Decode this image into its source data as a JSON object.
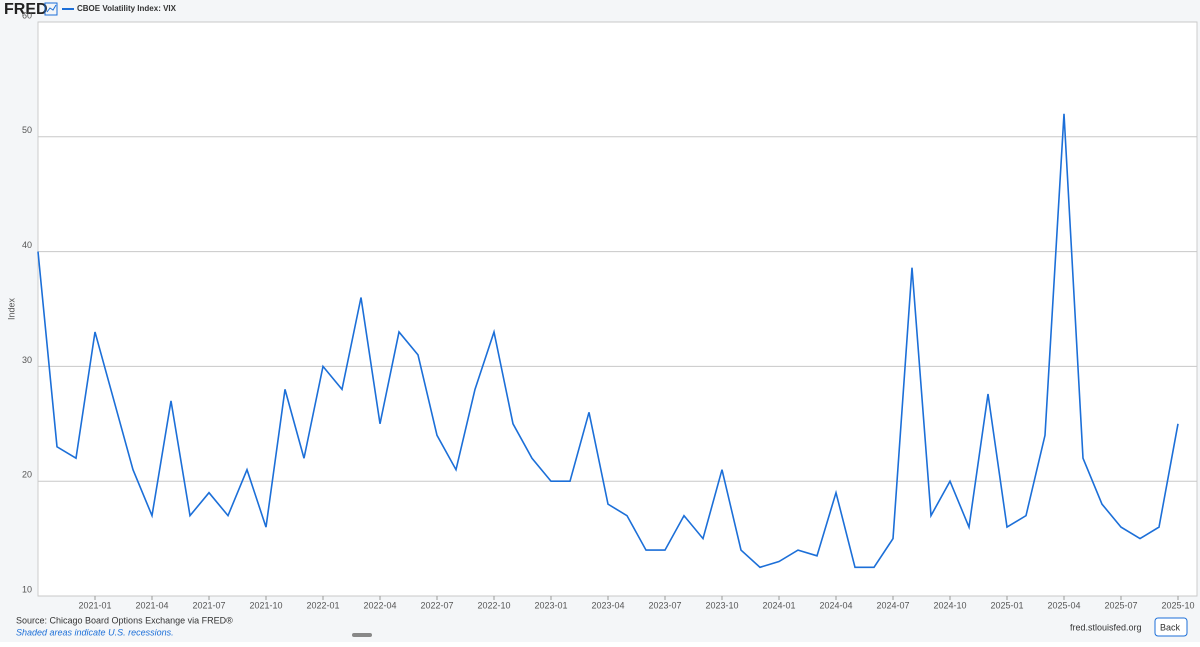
{
  "header": {
    "logo": "FRED"
  },
  "chart_data": {
    "type": "line",
    "y_label": "Index",
    "x": [
      "2020-10",
      "2020-11",
      "2020-12",
      "2021-01",
      "2021-02",
      "2021-03",
      "2021-04",
      "2021-05",
      "2021-06",
      "2021-07",
      "2021-08",
      "2021-09",
      "2021-10",
      "2021-11",
      "2021-12",
      "2022-01",
      "2022-02",
      "2022-03",
      "2022-04",
      "2022-05",
      "2022-06",
      "2022-07",
      "2022-08",
      "2022-09",
      "2022-10",
      "2022-11",
      "2022-12",
      "2023-01",
      "2023-02",
      "2023-03",
      "2023-04",
      "2023-05",
      "2023-06",
      "2023-07",
      "2023-08",
      "2023-09",
      "2023-10",
      "2023-11",
      "2023-12",
      "2024-01",
      "2024-02",
      "2024-03",
      "2024-04",
      "2024-05",
      "2024-06",
      "2024-07",
      "2024-08",
      "2024-09",
      "2024-10",
      "2024-11",
      "2024-12",
      "2025-01",
      "2025-02",
      "2025-03",
      "2025-04",
      "2025-05",
      "2025-06",
      "2025-07",
      "2025-08",
      "2025-09",
      "2025-10"
    ],
    "series": [
      {
        "name": "CBOE Volatility Index: VIX",
        "color": "#1c6fd8",
        "values": [
          40,
          23,
          22,
          33,
          27,
          21,
          17,
          27,
          17,
          19,
          17,
          21,
          16,
          28,
          22,
          30,
          28,
          36,
          25,
          33,
          31,
          24,
          21,
          28,
          33,
          25,
          22,
          20,
          20,
          26,
          18,
          17,
          14,
          14,
          17,
          15,
          21,
          14,
          12.5,
          13,
          14,
          13.5,
          19,
          12.5,
          12.5,
          15,
          38.6,
          17,
          20,
          16,
          27.6,
          16,
          17,
          24,
          52,
          22,
          18,
          16,
          15,
          16,
          25
        ]
      }
    ],
    "xlim": [
      "2020-10",
      "2025-11"
    ],
    "xticks": [
      "2021-01",
      "2021-04",
      "2021-07",
      "2021-10",
      "2022-01",
      "2022-04",
      "2022-07",
      "2022-10",
      "2023-01",
      "2023-04",
      "2023-07",
      "2023-10",
      "2024-01",
      "2024-04",
      "2024-07",
      "2024-10",
      "2025-01",
      "2025-04",
      "2025-07",
      "2025-10"
    ],
    "ylim": [
      10,
      60
    ],
    "yticks": [
      10,
      20,
      30,
      40,
      50,
      60
    ],
    "grid": true
  },
  "footer": {
    "source": "Source: Chicago Board Options Exchange via FRED®",
    "note": "Shaded areas indicate U.S. recessions.",
    "site": "fred.stlouisfed.org",
    "button": "Back"
  }
}
